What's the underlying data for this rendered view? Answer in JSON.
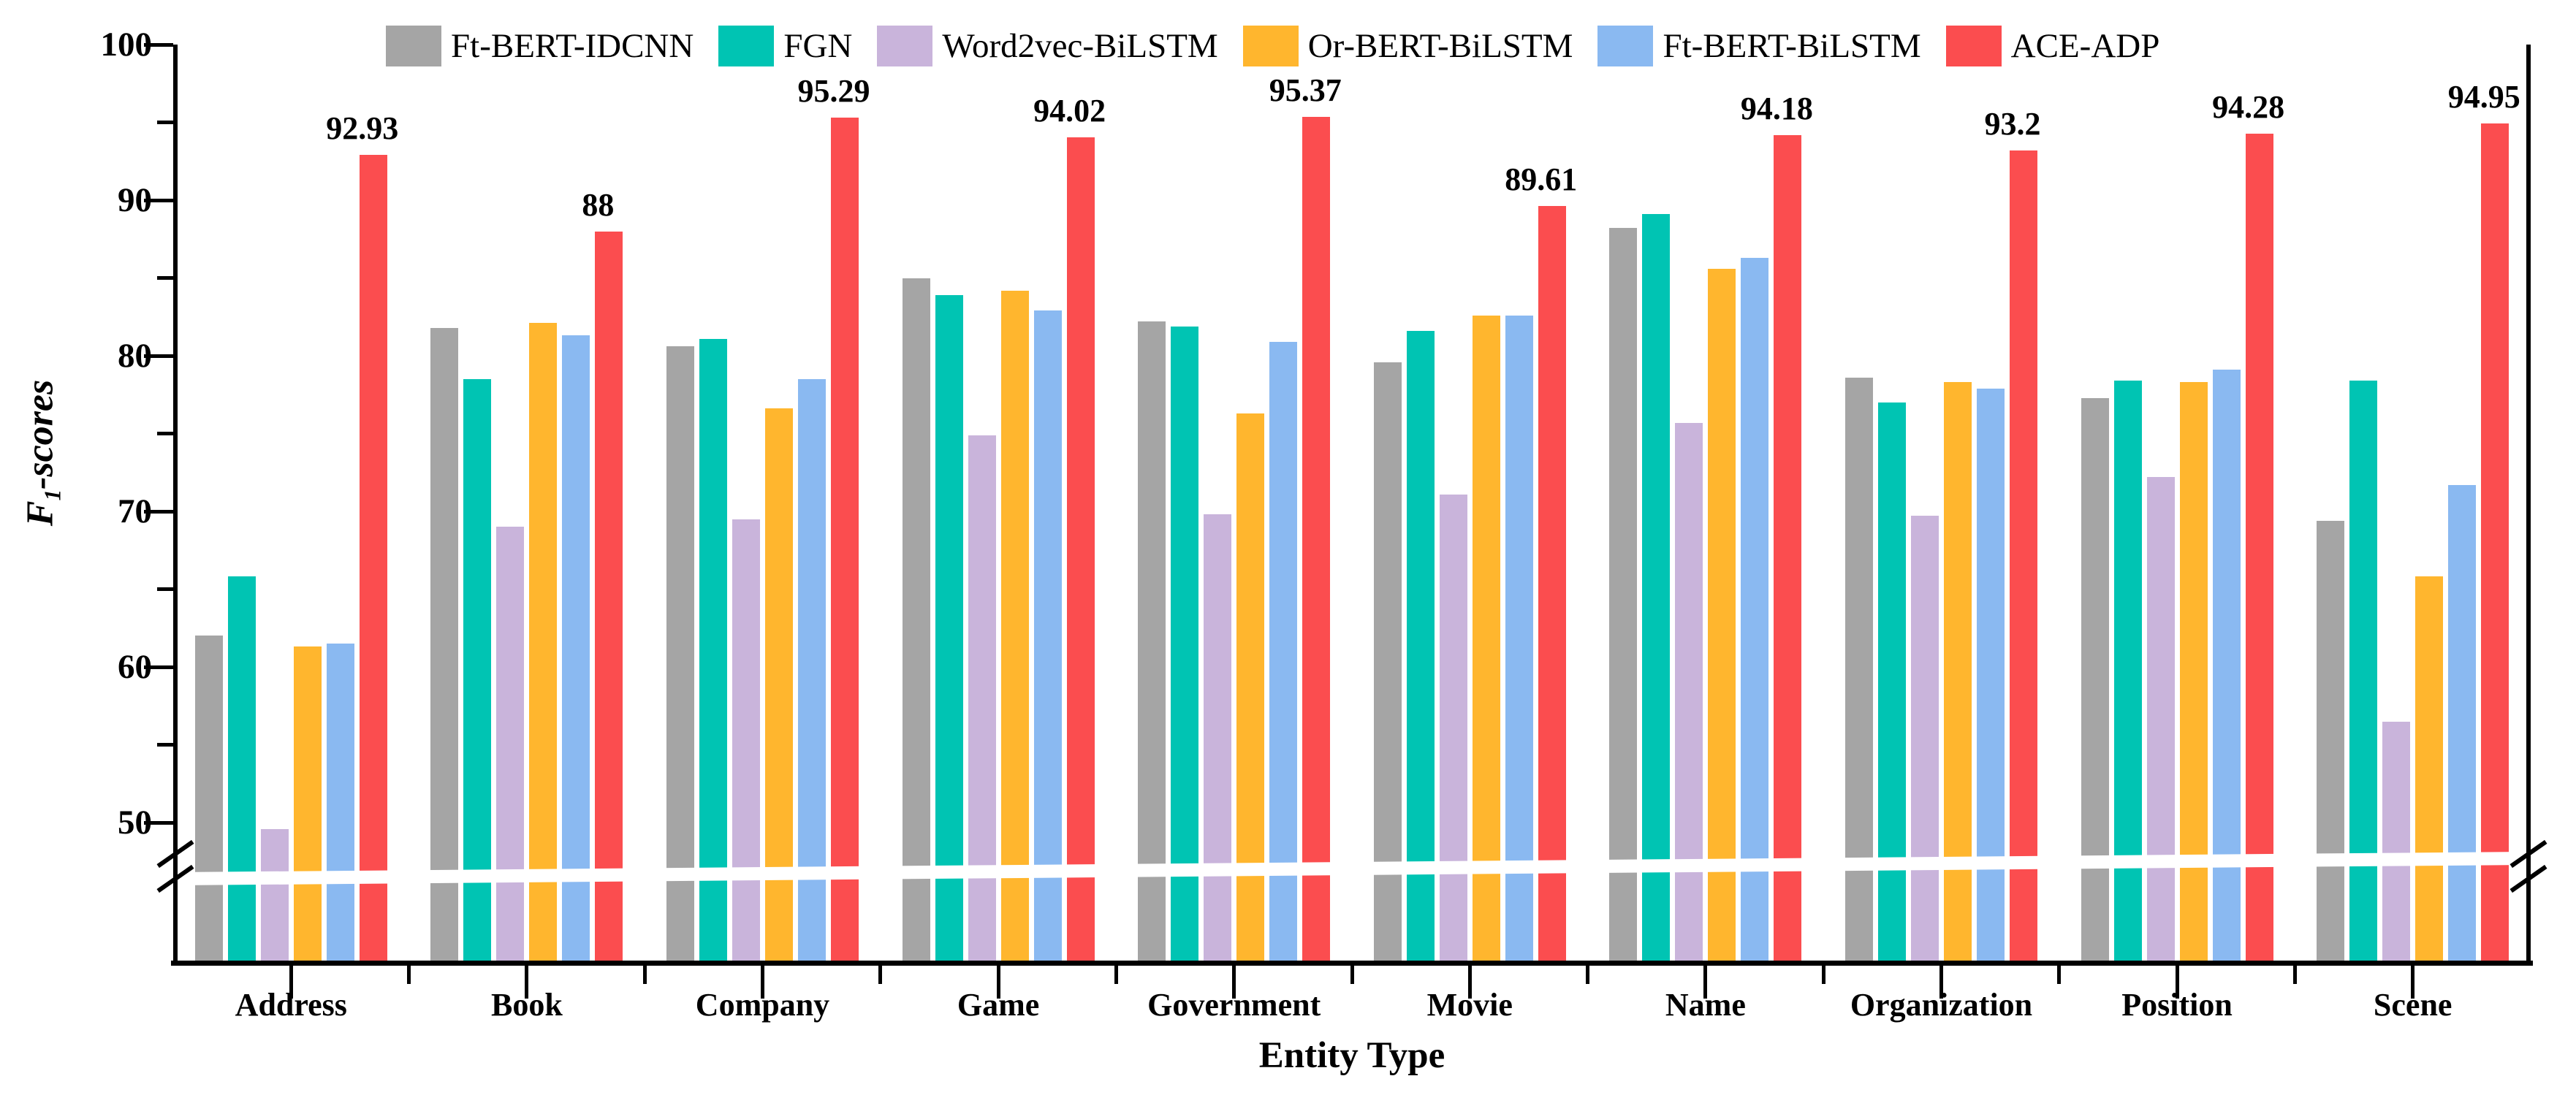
{
  "figure": {
    "background": "#ffffff"
  },
  "chart_data": {
    "type": "bar",
    "title": "",
    "xlabel": "Entity Type",
    "ylabel": "F1-scores",
    "ylabel_parts": {
      "main": "F",
      "sub": "1",
      "rest": "-scores"
    },
    "legend_position": "top",
    "grid": false,
    "y_axis": {
      "max": 100,
      "min_shown": 50,
      "major_ticks": [
        50,
        60,
        70,
        80,
        90,
        100
      ],
      "minor_ticks": [
        55,
        65,
        75,
        85,
        95
      ],
      "axis_break_below": 50
    },
    "categories": [
      "Address",
      "Book",
      "Company",
      "Game",
      "Government",
      "Movie",
      "Name",
      "Organization",
      "Position",
      "Scene"
    ],
    "series": [
      {
        "name": "Ft-BERT-IDCNN",
        "color": "#a5a5a5",
        "values": [
          62.0,
          81.8,
          80.6,
          85.0,
          82.2,
          79.6,
          88.2,
          78.6,
          77.3,
          69.4
        ]
      },
      {
        "name": "FGN",
        "color": "#00c4b3",
        "values": [
          65.8,
          78.5,
          81.1,
          83.9,
          81.9,
          81.6,
          89.1,
          77.0,
          78.4,
          78.4
        ]
      },
      {
        "name": "Word2vec-BiLSTM",
        "color": "#c9b4db",
        "values": [
          49.6,
          69.0,
          69.5,
          74.9,
          69.8,
          71.1,
          75.7,
          69.7,
          72.2,
          56.5
        ]
      },
      {
        "name": "Or-BERT-BiLSTM",
        "color": "#ffb62e",
        "values": [
          61.3,
          82.1,
          76.6,
          84.2,
          76.3,
          82.6,
          85.6,
          78.3,
          78.3,
          65.8
        ]
      },
      {
        "name": "Ft-BERT-BiLSTM",
        "color": "#8ab9f1",
        "values": [
          61.5,
          81.3,
          78.5,
          82.9,
          80.9,
          82.6,
          86.3,
          77.9,
          79.1,
          71.7
        ]
      },
      {
        "name": "ACE-ADP",
        "color": "#fb4d4f",
        "values": [
          92.93,
          88,
          95.29,
          94.02,
          95.37,
          89.61,
          94.18,
          93.2,
          94.28,
          94.95
        ],
        "value_labels": [
          "92.93",
          "88",
          "95.29",
          "94.02",
          "95.37",
          "89.61",
          "94.18",
          "93.2",
          "94.28",
          "94.95"
        ]
      }
    ]
  }
}
